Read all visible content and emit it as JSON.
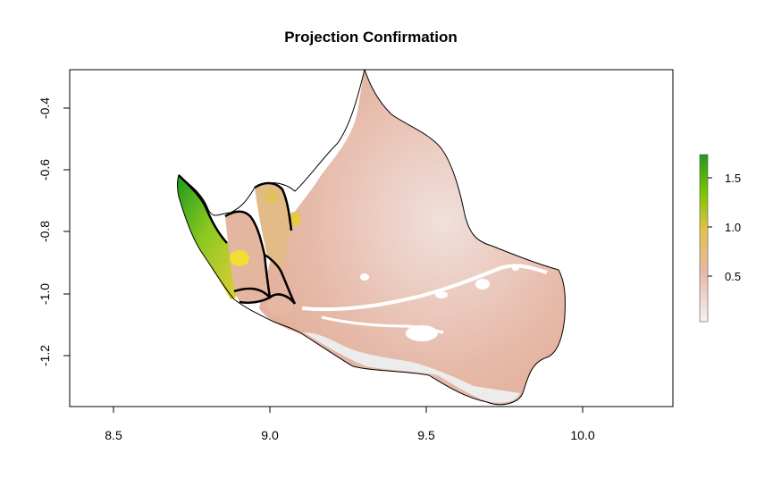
{
  "plot": {
    "title": "Projection Confirmation",
    "x_ticks": [
      "8.5",
      "9.0",
      "9.5",
      "10.0"
    ],
    "y_ticks": [
      "-0.4",
      "-0.6",
      "-0.8",
      "-1.0",
      "-1.2"
    ]
  },
  "legend": {
    "ticks": [
      "1.5",
      "1.0",
      "0.5"
    ],
    "colors": [
      "#f2f2f2",
      "#e8b8a4",
      "#e2c24a",
      "#79c400",
      "#1f9a1f"
    ]
  },
  "map_colors": {
    "low": "#eeeeee",
    "mid": "#e8bfae",
    "high_yellow": "#e7cf3f",
    "high_green": "#1c9b1c"
  }
}
